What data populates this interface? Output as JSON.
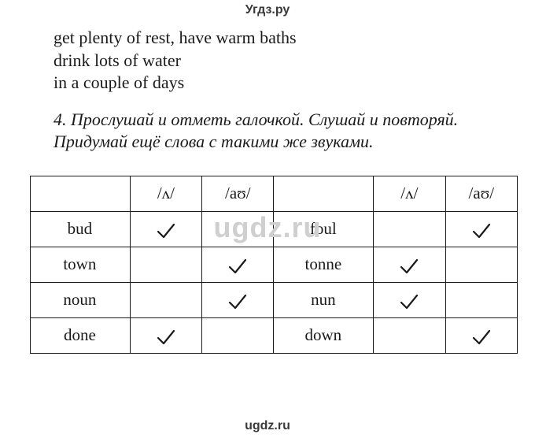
{
  "watermarks": {
    "top": "Угдз.ру",
    "mid": "ugdz.ru",
    "bottom": "ugdz.ru"
  },
  "body_lines": [
    "get plenty of rest, have warm baths",
    "drink lots of water",
    "in a couple of days"
  ],
  "instruction": {
    "number": "4.",
    "text": "Прослушай и отметь галочкой. Слушай и повторяй. Придумай ещё слова с такими же звуками."
  },
  "table": {
    "sounds": {
      "s1": "/ʌ/",
      "s2": "/aʊ/"
    },
    "rows": [
      {
        "w1": "bud",
        "c1": true,
        "c2": false,
        "w2": "foul",
        "c3": false,
        "c4": true
      },
      {
        "w1": "town",
        "c1": false,
        "c2": true,
        "w2": "tonne",
        "c3": true,
        "c4": false
      },
      {
        "w1": "noun",
        "c1": false,
        "c2": true,
        "w2": "nun",
        "c3": true,
        "c4": false
      },
      {
        "w1": "done",
        "c1": true,
        "c2": false,
        "w2": "down",
        "c3": false,
        "c4": true
      }
    ]
  },
  "colors": {
    "text": "#1a1a1a",
    "watermark_dark": "#3a3a3a",
    "watermark_light": "#cfcfcf",
    "border": "#1a1a1a",
    "background": "#ffffff"
  }
}
